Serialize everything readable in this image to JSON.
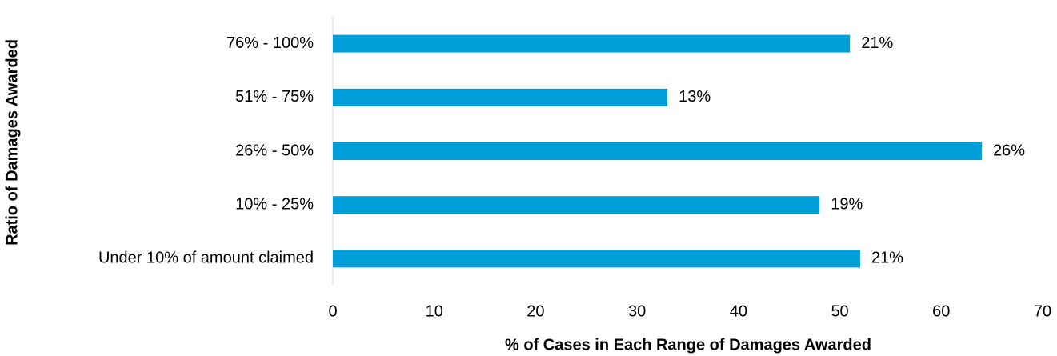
{
  "chart_data": {
    "type": "bar",
    "orientation": "horizontal",
    "xlabel": "% of Cases in Each Range of Damages Awarded",
    "ylabel": "Ratio of Damages Awarded",
    "categories": [
      "76% - 100%",
      "51% - 75%",
      "26% - 50%",
      "10% - 25%",
      "Under 10% of amount claimed"
    ],
    "values": [
      51,
      33,
      64,
      48,
      52
    ],
    "annotations": [
      "21%",
      "13%",
      "26%",
      "19%",
      "21%"
    ],
    "color": "#009fd9",
    "xlim": [
      0,
      70
    ],
    "xticks": [
      0,
      10,
      20,
      30,
      40,
      50,
      60,
      70
    ],
    "grid": false
  }
}
